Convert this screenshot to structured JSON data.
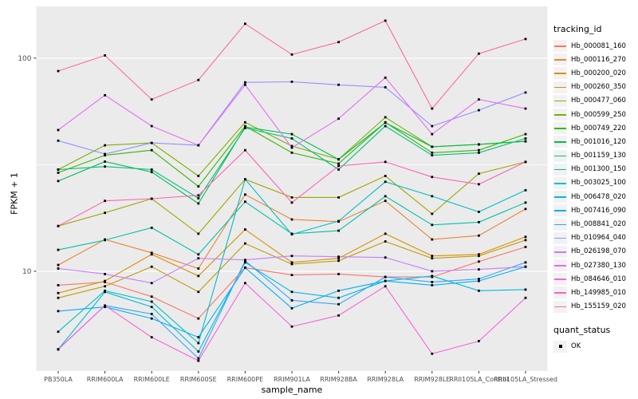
{
  "figure": {
    "y_axis_title": "FPKM + 1",
    "x_axis_title": "sample_name",
    "legend": {
      "tracking_title": "tracking_id",
      "quant_title": "quant_status",
      "quant_ok_label": "OK"
    }
  },
  "chart_data": {
    "type": "line",
    "title": "",
    "xlabel": "sample_name",
    "ylabel": "FPKM + 1",
    "yscale": "log10",
    "ylim": [
      3.4,
      175
    ],
    "yticks": [
      10,
      100
    ],
    "minor_yticks": [
      31.6
    ],
    "grid": "on",
    "panel_background": "#EBEBEB",
    "gridline_color": "#FFFFFF",
    "point_marker": "black-square",
    "legend_position": "right",
    "categories": [
      "PB350LA",
      "RRIM600LA",
      "RRIM600LE",
      "RRIM600SE",
      "RRIM600PE",
      "RRIM901LA",
      "RRIM928BA",
      "RRIM928LA",
      "RRIM928LE",
      "RRII105LA_Control",
      "RRII105LA_Stressed"
    ],
    "series": [
      {
        "name": "Hb_000081_160",
        "color": "#F8766D",
        "values": [
          8.6,
          8.9,
          7.6,
          6.0,
          10.4,
          9.6,
          9.7,
          9.4,
          9.4,
          11.1,
          13.0
        ]
      },
      {
        "name": "Hb_000116_270",
        "color": "#EB8335",
        "values": [
          10.7,
          14.1,
          12.2,
          10.3,
          22.9,
          17.5,
          17.1,
          21.4,
          14.1,
          14.7,
          19.6
        ]
      },
      {
        "name": "Hb_000200_020",
        "color": "#D89000",
        "values": [
          7.9,
          9.0,
          12.0,
          9.5,
          15.7,
          11.0,
          11.5,
          15.0,
          11.8,
          12.0,
          14.5
        ]
      },
      {
        "name": "Hb_000260_350",
        "color": "#C09B06",
        "values": [
          7.5,
          8.5,
          10.5,
          8.0,
          13.5,
          10.8,
          11.2,
          13.8,
          11.5,
          11.8,
          14.0
        ]
      },
      {
        "name": "Hb_000477_060",
        "color": "#A3A500",
        "values": [
          16.3,
          18.8,
          21.9,
          15.0,
          27.0,
          22.2,
          22.2,
          28.0,
          18.6,
          28.7,
          32.6
        ]
      },
      {
        "name": "Hb_000599_250",
        "color": "#7CAE00",
        "values": [
          30.0,
          39.0,
          40.0,
          28.0,
          50.0,
          38.7,
          33.5,
          52.8,
          38.4,
          39.4,
          40.7
        ]
      },
      {
        "name": "Hb_000749_220",
        "color": "#39B600",
        "values": [
          29.0,
          35.0,
          37.0,
          25.0,
          48.0,
          36.0,
          32.0,
          50.0,
          36.0,
          37.0,
          44.0
        ]
      },
      {
        "name": "Hb_001016_120",
        "color": "#00BB4E",
        "values": [
          26.5,
          32.7,
          29.2,
          20.8,
          47.5,
          44.0,
          33.5,
          49.8,
          38.4,
          39.4,
          40.7
        ]
      },
      {
        "name": "Hb_001159_130",
        "color": "#00BF7D",
        "values": [
          30.0,
          31.0,
          30.0,
          22.0,
          47.0,
          42.0,
          30.0,
          48.0,
          35.0,
          36.0,
          42.0
        ]
      },
      {
        "name": "Hb_001300_150",
        "color": "#00C1A7",
        "values": [
          12.6,
          14.0,
          16.0,
          12.0,
          21.2,
          15.0,
          15.5,
          22.5,
          16.5,
          17.0,
          21.0
        ]
      },
      {
        "name": "Hb_003025_100",
        "color": "#00BFC4",
        "values": [
          5.2,
          8.1,
          7.2,
          4.6,
          27.0,
          14.9,
          17.2,
          26.3,
          22.5,
          19.0,
          24.0
        ]
      },
      {
        "name": "Hb_006478_020",
        "color": "#00BADE",
        "values": [
          4.3,
          8.0,
          6.8,
          4.2,
          11.0,
          8.0,
          7.5,
          9.0,
          9.5,
          8.1,
          8.2
        ]
      },
      {
        "name": "Hb_007416_090",
        "color": "#00B0F6",
        "values": [
          6.5,
          6.8,
          6.0,
          4.9,
          10.4,
          6.7,
          8.1,
          9.0,
          8.6,
          9.0,
          10.5
        ]
      },
      {
        "name": "Hb_008841_020",
        "color": "#35A2FF",
        "values": [
          4.3,
          6.9,
          6.3,
          3.9,
          11.2,
          7.3,
          7.0,
          9.4,
          8.9,
          9.2,
          11.0
        ]
      },
      {
        "name": "Hb_010964_040",
        "color": "#9590FF",
        "values": [
          41.0,
          35.5,
          40.0,
          39.0,
          77.0,
          77.5,
          75.0,
          73.0,
          48.0,
          57.0,
          69.0
        ]
      },
      {
        "name": "Hb_026198_070",
        "color": "#C77CFF",
        "values": [
          10.3,
          9.7,
          8.8,
          11.5,
          11.3,
          11.8,
          11.7,
          11.6,
          10.0,
          10.2,
          10.5
        ]
      },
      {
        "name": "Hb_027380_130",
        "color": "#E76BF3",
        "values": [
          46.0,
          67.0,
          48.0,
          39.0,
          75.0,
          38.0,
          52.0,
          81.0,
          44.0,
          64.0,
          58.0
        ]
      },
      {
        "name": "Hb_084646_010",
        "color": "#FA62DB",
        "values": [
          4.3,
          6.9,
          4.9,
          3.8,
          8.8,
          5.5,
          6.2,
          8.5,
          4.1,
          4.7,
          7.5
        ]
      },
      {
        "name": "Hb_149985_010",
        "color": "#FF62BC",
        "values": [
          16.3,
          21.4,
          21.9,
          22.7,
          37.0,
          21.0,
          31.2,
          32.6,
          27.7,
          25.6,
          32.6
        ]
      },
      {
        "name": "Hb_155159_020",
        "color": "#FF6A98",
        "values": [
          87,
          103,
          64,
          79,
          145,
          104,
          119,
          150,
          58,
          105,
          123
        ]
      }
    ],
    "quant_status_values": [
      "OK"
    ]
  }
}
